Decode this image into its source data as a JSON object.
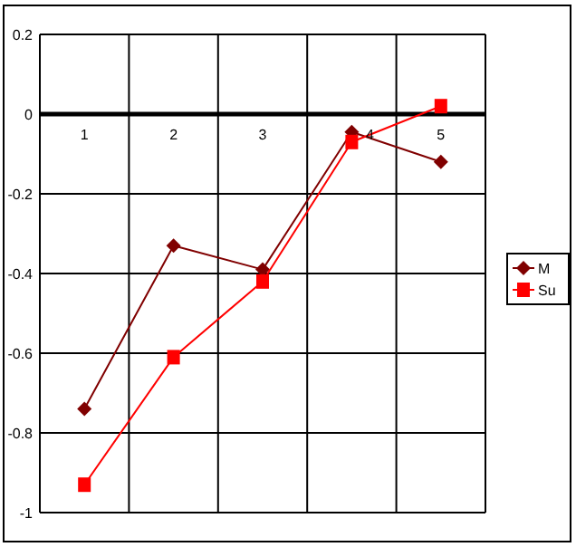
{
  "chart_data": {
    "type": "line",
    "categories": [
      "1",
      "2",
      "3",
      "4",
      "5"
    ],
    "series": [
      {
        "name": "M",
        "color": "#800000",
        "marker": "diamond",
        "values": [
          -0.74,
          -0.33,
          -0.39,
          -0.045,
          -0.12
        ]
      },
      {
        "name": "Su",
        "color": "#ff0000",
        "marker": "square",
        "values": [
          -0.93,
          -0.61,
          -0.42,
          -0.07,
          0.02
        ]
      }
    ],
    "ylim": [
      -1,
      0.2
    ],
    "yticks": [
      {
        "value": -1,
        "label": "-1"
      },
      {
        "value": -0.8,
        "label": "-0.8"
      },
      {
        "value": -0.6,
        "label": "-0.6"
      },
      {
        "value": -0.4,
        "label": "-0.4"
      },
      {
        "value": -0.2,
        "label": "-0.2"
      },
      {
        "value": 0,
        "label": "0"
      },
      {
        "value": 0.2,
        "label": "0.2"
      }
    ],
    "grid": true,
    "legend": "right"
  }
}
